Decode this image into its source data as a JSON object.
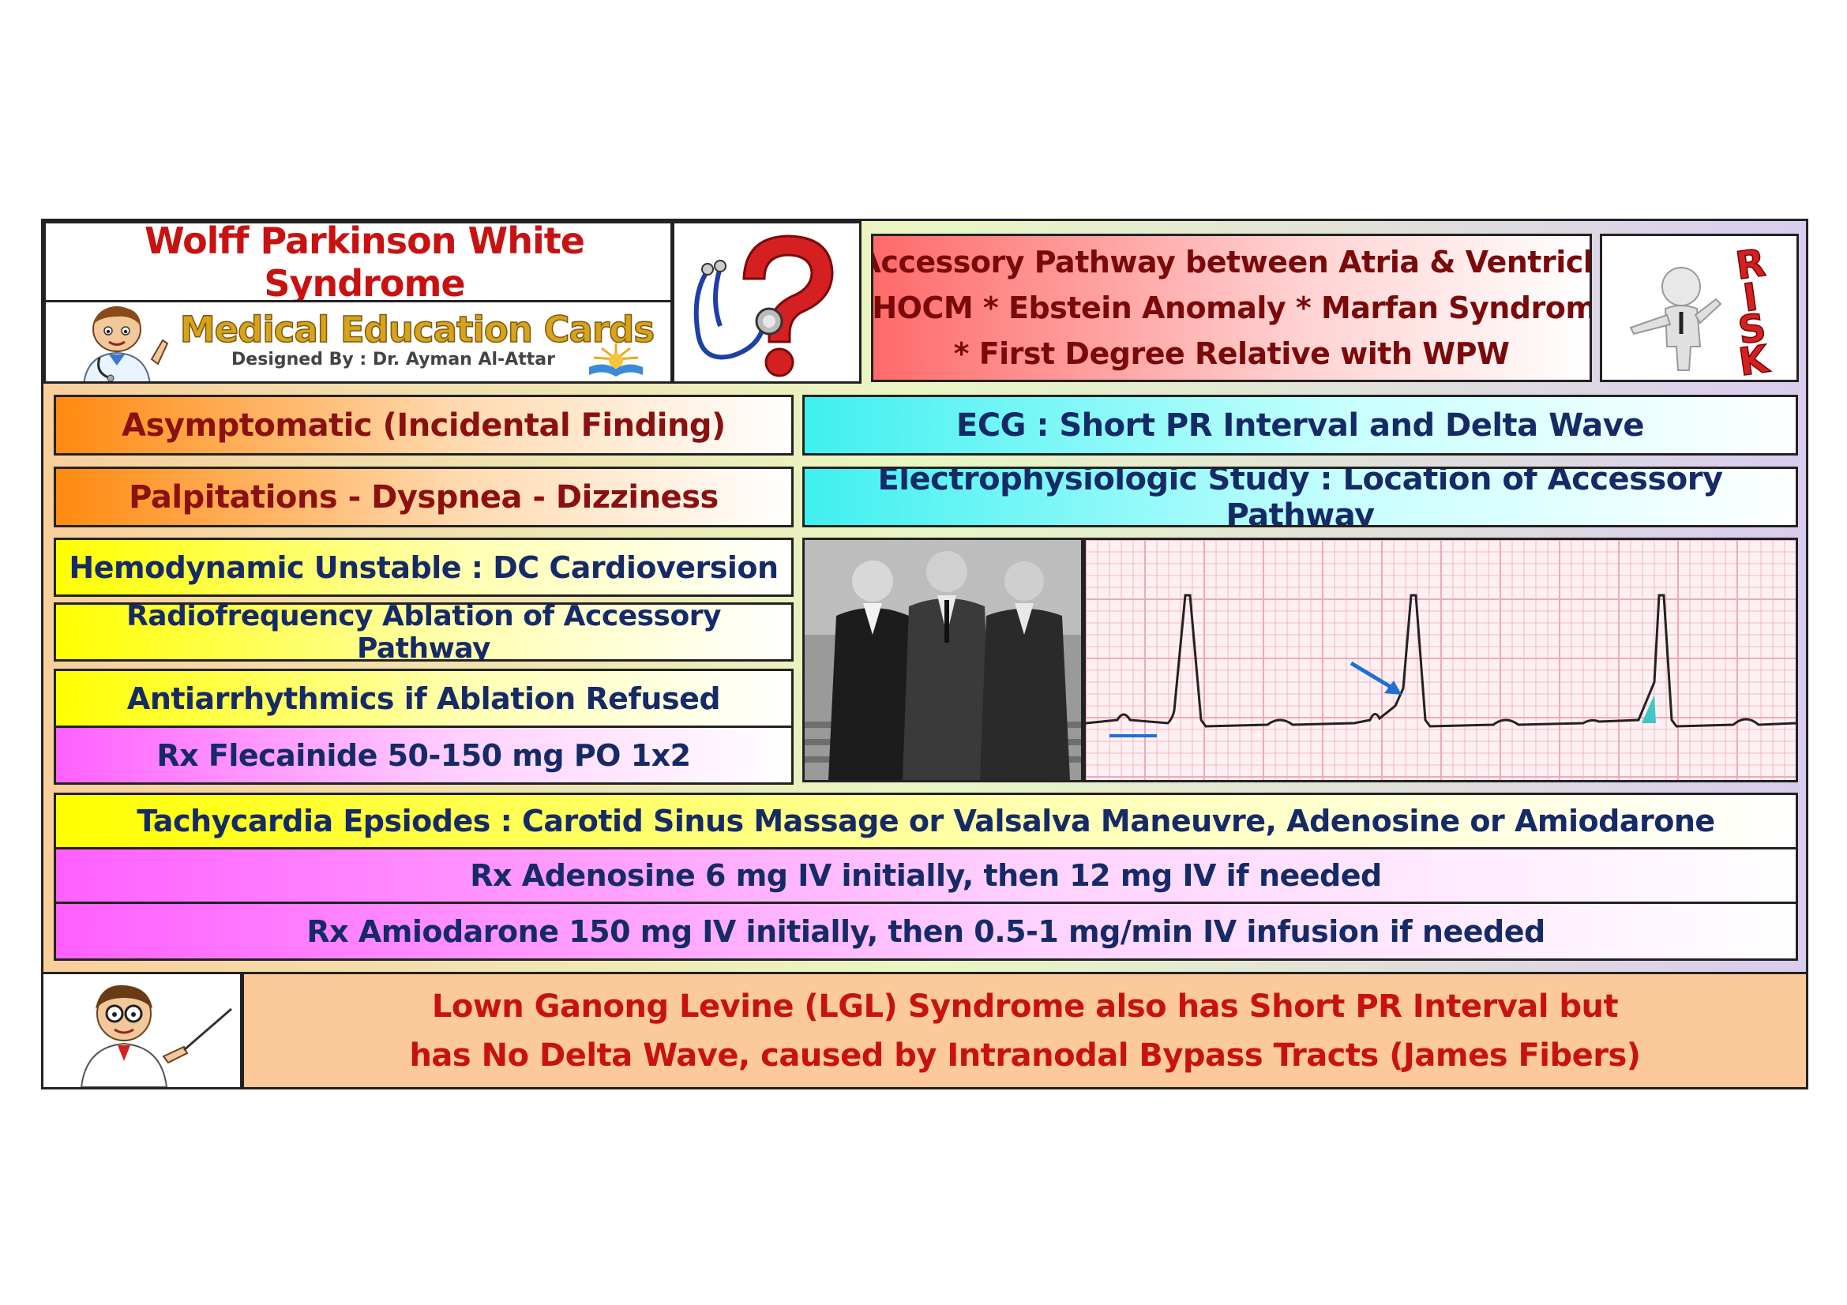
{
  "header": {
    "title": "Wolff Parkinson White Syndrome",
    "brand": "Medical Education Cards",
    "credit": "Designed By : Dr. Ayman Al-Attar"
  },
  "risk_factors": {
    "lines": [
      "* Accessory Pathway between Atria & Ventricles",
      "* HOCM * Ebstein Anomaly * Marfan Syndrome",
      "* First Degree Relative with WPW"
    ],
    "badge": "RISK"
  },
  "presentation": {
    "asymptomatic": "Asymptomatic (Incidental Finding)",
    "symptoms": "Palpitations - Dyspnea - Dizziness"
  },
  "diagnosis": {
    "ecg": "ECG : Short PR Interval and Delta Wave",
    "eps": "Electrophysiologic Study : Location of Accessory Pathway"
  },
  "treatment": {
    "unstable": "Hemodynamic Unstable : DC Cardioversion",
    "ablation": "Radiofrequency Ablation of Accessory Pathway",
    "antiarrhythmics": "Antiarrhythmics if Ablation Refused",
    "flecainide": "Rx Flecainide 50-150 mg PO 1x2"
  },
  "tachycardia": {
    "episodes": "Tachycardia Epsiodes : Carotid Sinus Massage or Valsalva Maneuvre, Adenosine or Amiodarone",
    "adenosine": "Rx Adenosine 6 mg IV initially, then 12 mg IV if needed",
    "amiodarone": "Rx Amiodarone 150 mg IV initially, then 0.5-1 mg/min IV infusion if needed"
  },
  "footer_note": {
    "line1": "Lown Ganong Levine (LGL) Syndrome also has Short PR Interval but",
    "line2": "has No Delta Wave, caused by Intranodal Bypass Tracts (James Fibers)"
  },
  "colors": {
    "navy_text": "#152a66",
    "red_text": "#c81212",
    "orange": "#ff8a10",
    "yellow": "#ffff00",
    "magenta": "#ff60ff",
    "cyan": "#3ff0f0",
    "ecg_grid": "#f2a8b8"
  },
  "icons": [
    "doctor-cartoon-icon",
    "stethoscope-question-icon",
    "risk-figure-icon",
    "professor-pointer-icon"
  ]
}
